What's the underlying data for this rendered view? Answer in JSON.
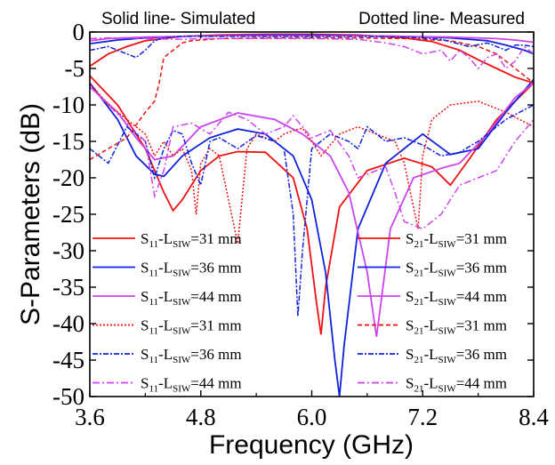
{
  "chart_data": {
    "type": "line",
    "header_left": "Solid line- Simulated",
    "header_right": "Dotted line- Measured",
    "xlabel": "Frequency (GHz)",
    "ylabel": "S-Parameters (dB)",
    "xlim": [
      3.6,
      8.4
    ],
    "ylim": [
      -50,
      0
    ],
    "xticks": [
      "3.6",
      "4.8",
      "6.0",
      "7.2",
      "8.4"
    ],
    "xtick_values": [
      3.6,
      4.8,
      6.0,
      7.2,
      8.4
    ],
    "yticks": [
      "0",
      "-5",
      "-10",
      "-15",
      "-20",
      "-25",
      "-30",
      "-35",
      "-40",
      "-45",
      "-50"
    ],
    "ytick_values": [
      0,
      -5,
      -10,
      -15,
      -20,
      -25,
      -30,
      -35,
      -40,
      -45,
      -50
    ],
    "grid": false,
    "legend_left_position": "lower-left",
    "legend_right_position": "lower-right",
    "series": [
      {
        "param": "S",
        "sub": "11",
        "lsub": "SIW",
        "value": "=31 mm",
        "color": "#ee1111",
        "dash": "solid",
        "x": [
          3.6,
          3.9,
          4.2,
          4.4,
          4.5,
          4.6,
          4.8,
          5.0,
          5.2,
          5.5,
          5.8,
          5.95,
          6.05,
          6.1,
          6.15,
          6.3,
          6.6,
          7.0,
          7.3,
          7.5,
          7.7,
          8.0,
          8.4
        ],
        "y": [
          -6,
          -10,
          -16,
          -22,
          -24.5,
          -23,
          -19,
          -17,
          -16.4,
          -16.5,
          -20,
          -27,
          -37,
          -41.5,
          -35,
          -24,
          -19,
          -17.3,
          -18.5,
          -21,
          -17.5,
          -12,
          -7
        ]
      },
      {
        "param": "S",
        "sub": "11",
        "lsub": "SIW",
        "value": "=36 mm",
        "color": "#1122dd",
        "dash": "solid",
        "x": [
          3.6,
          3.9,
          4.1,
          4.3,
          4.4,
          4.6,
          4.9,
          5.2,
          5.5,
          5.8,
          6.0,
          6.15,
          6.25,
          6.3,
          6.35,
          6.5,
          6.8,
          7.2,
          7.5,
          7.8,
          8.1,
          8.4
        ],
        "y": [
          -7,
          -12,
          -17,
          -19.5,
          -19.8,
          -17,
          -14.5,
          -13.3,
          -14,
          -17,
          -23,
          -33,
          -45,
          -50,
          -43,
          -27,
          -18,
          -14,
          -16.8,
          -16,
          -11,
          -6.5
        ]
      },
      {
        "param": "S",
        "sub": "11",
        "lsub": "SIW",
        "value": "=44 mm",
        "color": "#cc44ee",
        "dash": "solid",
        "x": [
          3.6,
          3.9,
          4.1,
          4.3,
          4.5,
          4.8,
          5.2,
          5.6,
          5.9,
          6.2,
          6.4,
          6.6,
          6.7,
          6.75,
          6.85,
          7.1,
          7.4,
          7.6,
          7.9,
          8.2,
          8.4
        ],
        "y": [
          -7.5,
          -11,
          -14.5,
          -17.5,
          -17,
          -13,
          -11.1,
          -12,
          -14,
          -17,
          -22,
          -33,
          -41.8,
          -37,
          -27,
          -20,
          -18.7,
          -18,
          -14,
          -9,
          -7
        ]
      },
      {
        "param": "S",
        "sub": "11",
        "lsub": "SIW",
        "value": "=31 mm",
        "color": "#ee1111",
        "dash": "2,2",
        "x": [
          3.6,
          3.8,
          4.0,
          4.2,
          4.3,
          4.4,
          4.5,
          4.6,
          4.7,
          4.75,
          4.8,
          4.9,
          5.0,
          5.1,
          5.2,
          5.3,
          5.4,
          5.5,
          5.6,
          5.7,
          5.8,
          5.9,
          6.0,
          6.1,
          6.3,
          6.5,
          6.7,
          6.9,
          7.0,
          7.1,
          7.15,
          7.2,
          7.3,
          7.5,
          7.8,
          8.1,
          8.4
        ],
        "y": [
          -7,
          -10,
          -12,
          -14,
          -17,
          -15,
          -17,
          -16,
          -19,
          -25,
          -18,
          -16,
          -17,
          -23,
          -29,
          -16,
          -14,
          -14.5,
          -15,
          -14,
          -13.5,
          -13.2,
          -15,
          -17,
          -14,
          -13,
          -14,
          -15,
          -18,
          -24,
          -27,
          -17,
          -12,
          -10,
          -9.5,
          -11,
          -13
        ]
      },
      {
        "param": "S",
        "sub": "11",
        "lsub": "SIW",
        "value": "=36 mm",
        "color": "#1122dd",
        "dash": "6,2,2,2",
        "x": [
          3.6,
          3.8,
          4.0,
          4.2,
          4.3,
          4.4,
          4.5,
          4.6,
          4.7,
          4.8,
          4.9,
          5.0,
          5.2,
          5.4,
          5.6,
          5.7,
          5.8,
          5.85,
          5.9,
          6.0,
          6.2,
          6.4,
          6.5,
          6.6,
          6.8,
          7.0,
          7.2,
          7.4,
          7.6,
          7.8,
          8.1,
          8.4
        ],
        "y": [
          -16,
          -18,
          -13,
          -15,
          -20,
          -16,
          -13.5,
          -14,
          -18,
          -21,
          -15,
          -14.5,
          -16,
          -14.2,
          -15,
          -16,
          -25,
          -39,
          -30,
          -16,
          -14,
          -15,
          -16,
          -13,
          -15,
          -14.5,
          -15.5,
          -17,
          -16.5,
          -15,
          -12,
          -10
        ]
      },
      {
        "param": "S",
        "sub": "11",
        "lsub": "SIW",
        "value": "=44 mm",
        "color": "#cc44ee",
        "dash": "8,3,2,3",
        "x": [
          3.6,
          3.8,
          4.0,
          4.2,
          4.3,
          4.4,
          4.5,
          4.7,
          4.9,
          5.1,
          5.3,
          5.5,
          5.7,
          5.8,
          6.0,
          6.2,
          6.4,
          6.5,
          6.6,
          6.8,
          6.9,
          7.0,
          7.2,
          7.4,
          7.6,
          7.8,
          8.0,
          8.2,
          8.4
        ],
        "y": [
          -7.5,
          -10,
          -12.5,
          -15,
          -22.5,
          -19,
          -13,
          -12.5,
          -14,
          -11,
          -12,
          -14,
          -13,
          -11.5,
          -14.5,
          -13.5,
          -17,
          -20,
          -19.5,
          -18.5,
          -22,
          -26,
          -27,
          -25,
          -21,
          -20,
          -19,
          -15,
          -12
        ]
      },
      {
        "param": "S",
        "sub": "21",
        "lsub": "SIW",
        "value": "=31 mm",
        "color": "#ee1111",
        "dash": "solid",
        "x": [
          3.6,
          3.8,
          4.0,
          4.2,
          4.4,
          4.6,
          5.0,
          5.5,
          6.0,
          6.5,
          7.0,
          7.3,
          7.6,
          7.8,
          8.0,
          8.2,
          8.4
        ],
        "y": [
          -4.7,
          -3,
          -2,
          -1.2,
          -0.9,
          -0.6,
          -0.4,
          -0.3,
          -0.3,
          -0.4,
          -0.8,
          -1.3,
          -2.5,
          -3.8,
          -5,
          -6.2,
          -7
        ]
      },
      {
        "param": "S",
        "sub": "21",
        "lsub": "SIW",
        "value": "=36 mm",
        "color": "#1122dd",
        "dash": "solid",
        "x": [
          3.6,
          3.9,
          4.2,
          4.6,
          5.0,
          5.5,
          6.0,
          6.5,
          7.0,
          7.5,
          7.9,
          8.1,
          8.3,
          8.4
        ],
        "y": [
          -1.6,
          -1.1,
          -0.8,
          -0.6,
          -0.5,
          -0.4,
          -0.4,
          -0.5,
          -0.6,
          -0.8,
          -1.2,
          -1.8,
          -2.5,
          -3
        ]
      },
      {
        "param": "S",
        "sub": "21",
        "lsub": "SIW",
        "value": "=44 mm",
        "color": "#cc44ee",
        "dash": "solid",
        "x": [
          3.6,
          3.8,
          4.2,
          4.6,
          5.0,
          5.5,
          6.0,
          6.5,
          7.0,
          7.5,
          8.0,
          8.2,
          8.4
        ],
        "y": [
          -1.2,
          -0.9,
          -0.7,
          -0.6,
          -0.5,
          -0.5,
          -0.5,
          -0.5,
          -0.6,
          -0.7,
          -0.9,
          -1.1,
          -1.4
        ]
      },
      {
        "param": "S",
        "sub": "21",
        "lsub": "SIW",
        "value": "=31 mm",
        "color": "#ee1111",
        "dash": "5,3",
        "x": [
          3.6,
          3.8,
          4.0,
          4.2,
          4.3,
          4.35,
          4.4,
          4.5,
          4.6,
          4.7,
          5.0,
          5.5,
          6.0,
          6.5,
          7.0,
          7.5,
          7.8,
          8.0,
          8.2,
          8.4
        ],
        "y": [
          -17.5,
          -16,
          -14.5,
          -11,
          -9.5,
          -7,
          -3.5,
          -2.5,
          -1.5,
          -1.2,
          -0.9,
          -0.8,
          -0.8,
          -0.8,
          -0.9,
          -1.2,
          -2,
          -3,
          -5,
          -7
        ]
      },
      {
        "param": "S",
        "sub": "21",
        "lsub": "SIW",
        "value": "=36 mm",
        "color": "#1122dd",
        "dash": "6,2,2,2",
        "x": [
          3.6,
          3.8,
          4.0,
          4.1,
          4.2,
          4.3,
          4.4,
          4.6,
          5.0,
          5.5,
          6.0,
          6.5,
          7.0,
          7.4,
          7.7,
          7.9,
          8.1,
          8.2,
          8.3,
          8.4
        ],
        "y": [
          -2.5,
          -2,
          -3,
          -3.5,
          -2.5,
          -1.2,
          -0.8,
          -0.6,
          -0.6,
          -0.6,
          -0.6,
          -0.6,
          -0.7,
          -1,
          -2,
          -1.5,
          -2.5,
          -1.8,
          -1.8,
          -2
        ]
      },
      {
        "param": "S",
        "sub": "21",
        "lsub": "SIW",
        "value": "=44 mm",
        "color": "#cc44ee",
        "dash": "8,3,2,3",
        "x": [
          3.6,
          3.8,
          4.0,
          4.2,
          4.5,
          5.0,
          5.5,
          6.0,
          6.5,
          6.8,
          7.0,
          7.2,
          7.4,
          7.5,
          7.6,
          7.7,
          7.8,
          7.9,
          8.0,
          8.1,
          8.2,
          8.3,
          8.4
        ],
        "y": [
          -0.9,
          -0.8,
          -0.8,
          -0.9,
          -1,
          -0.9,
          -0.9,
          -0.9,
          -1,
          -1.5,
          -2,
          -3,
          -2.5,
          -4,
          -2.5,
          -3.5,
          -5,
          -3.5,
          -3,
          -5,
          -4,
          -2,
          -3
        ]
      }
    ]
  }
}
